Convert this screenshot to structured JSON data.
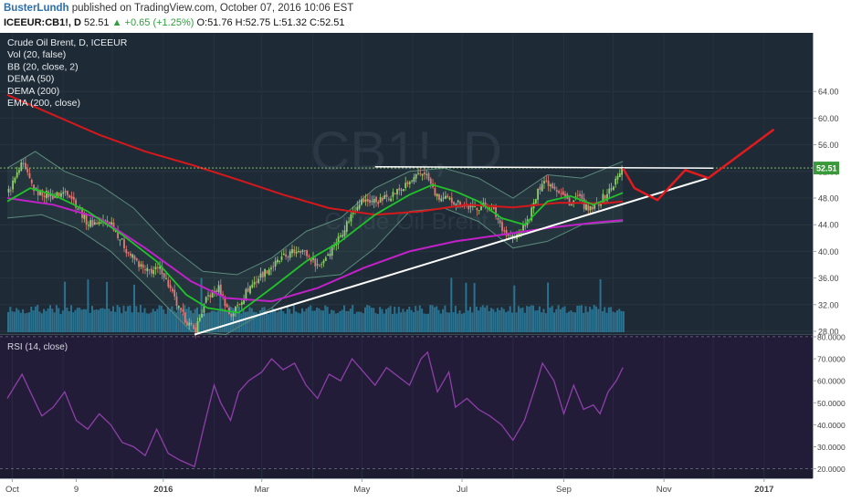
{
  "header": {
    "author": "BusterLundh",
    "published": "published on TradingView.com, October 07, 2016 10:06 EST",
    "symbol": "ICEEUR:CB1!, D",
    "last": "52.51",
    "change": "▲ +0.65 (+1.25%)",
    "ohlc": "O:51.76 H:52.75 L:51.32 C:52.51"
  },
  "colors": {
    "background": "#1e2a36",
    "rsi_background": "#1c1b30",
    "candle_up": "#8fd06e",
    "candle_down": "#e07a78",
    "volume": "#2e7fa0",
    "bb": "#5a8a7a",
    "dema50": "#22c22a",
    "dema200": "#d5181b",
    "ema200": "#c221c9",
    "trendline": "#ffffff",
    "projection": "#e11b1e",
    "rsi_line": "#8e3fa8",
    "price_tag": "#3a9a3a"
  },
  "chart_data": [
    {
      "type": "line",
      "title": "Crude Oil Brent, D, ICEEUR",
      "watermark": "CB1!, D",
      "watermark_sub": "Crude Oil Brent",
      "legend": [
        "Crude Oil Brent, D, ICEEUR",
        "Vol (20, false)",
        "BB (20, close, 2)",
        "DEMA (50)",
        "DEMA (200)",
        "EMA (200, close)"
      ],
      "xlabels": [
        "Oct",
        "9",
        "2016",
        "Mar",
        "May",
        "Jul",
        "Sep",
        "Nov",
        "2017"
      ],
      "ylabels": [
        "64.00",
        "60.00",
        "56.00",
        "52.00",
        "48.00",
        "44.00",
        "40.00",
        "36.00",
        "32.00",
        "28.00"
      ],
      "ylim": [
        25,
        65
      ],
      "last_price": "52.51",
      "price": [
        {
          "x": "2015-09-28",
          "y": 48.6
        },
        {
          "x": "2015-10-07",
          "y": 53.0
        },
        {
          "x": "2015-10-15",
          "y": 49.0
        },
        {
          "x": "2015-10-26",
          "y": 48.3
        },
        {
          "x": "2015-11-04",
          "y": 49.0
        },
        {
          "x": "2015-11-16",
          "y": 44.2
        },
        {
          "x": "2015-11-30",
          "y": 44.5
        },
        {
          "x": "2015-12-10",
          "y": 40.0
        },
        {
          "x": "2015-12-21",
          "y": 37.0
        },
        {
          "x": "2015-12-31",
          "y": 37.3
        },
        {
          "x": "2016-01-11",
          "y": 31.0
        },
        {
          "x": "2016-01-20",
          "y": 27.9
        },
        {
          "x": "2016-01-28",
          "y": 33.2
        },
        {
          "x": "2016-02-04",
          "y": 34.5
        },
        {
          "x": "2016-02-11",
          "y": 30.2
        },
        {
          "x": "2016-02-22",
          "y": 34.5
        },
        {
          "x": "2016-03-03",
          "y": 37.0
        },
        {
          "x": "2016-03-14",
          "y": 39.0
        },
        {
          "x": "2016-03-24",
          "y": 40.5
        },
        {
          "x": "2016-04-05",
          "y": 37.8
        },
        {
          "x": "2016-04-18",
          "y": 42.5
        },
        {
          "x": "2016-04-29",
          "y": 47.5
        },
        {
          "x": "2016-05-12",
          "y": 47.6
        },
        {
          "x": "2016-05-26",
          "y": 49.5
        },
        {
          "x": "2016-06-08",
          "y": 52.0
        },
        {
          "x": "2016-06-16",
          "y": 48.0
        },
        {
          "x": "2016-06-27",
          "y": 47.5
        },
        {
          "x": "2016-07-06",
          "y": 46.5
        },
        {
          "x": "2016-07-18",
          "y": 47.0
        },
        {
          "x": "2016-07-28",
          "y": 42.5
        },
        {
          "x": "2016-08-02",
          "y": 42.0
        },
        {
          "x": "2016-08-10",
          "y": 44.5
        },
        {
          "x": "2016-08-19",
          "y": 50.8
        },
        {
          "x": "2016-08-26",
          "y": 49.8
        },
        {
          "x": "2016-09-06",
          "y": 47.0
        },
        {
          "x": "2016-09-09",
          "y": 48.4
        },
        {
          "x": "2016-09-16",
          "y": 46.0
        },
        {
          "x": "2016-09-23",
          "y": 47.5
        },
        {
          "x": "2016-09-30",
          "y": 49.5
        },
        {
          "x": "2016-10-07",
          "y": 52.5
        }
      ],
      "dema50": [
        {
          "x": "2015-09-28",
          "y": 47.5
        },
        {
          "x": "2015-10-12",
          "y": 49.5
        },
        {
          "x": "2015-10-26",
          "y": 48.5
        },
        {
          "x": "2015-11-16",
          "y": 46.0
        },
        {
          "x": "2015-12-07",
          "y": 42.5
        },
        {
          "x": "2015-12-28",
          "y": 38.5
        },
        {
          "x": "2016-01-15",
          "y": 33.5
        },
        {
          "x": "2016-01-28",
          "y": 31.5
        },
        {
          "x": "2016-02-16",
          "y": 30.8
        },
        {
          "x": "2016-03-07",
          "y": 34.5
        },
        {
          "x": "2016-03-28",
          "y": 38.5
        },
        {
          "x": "2016-04-18",
          "y": 41.5
        },
        {
          "x": "2016-05-09",
          "y": 45.5
        },
        {
          "x": "2016-05-30",
          "y": 48.5
        },
        {
          "x": "2016-06-13",
          "y": 50.0
        },
        {
          "x": "2016-06-27",
          "y": 49.0
        },
        {
          "x": "2016-07-11",
          "y": 47.5
        },
        {
          "x": "2016-07-25",
          "y": 45.0
        },
        {
          "x": "2016-08-08",
          "y": 44.0
        },
        {
          "x": "2016-08-22",
          "y": 47.5
        },
        {
          "x": "2016-09-05",
          "y": 48.3
        },
        {
          "x": "2016-09-19",
          "y": 47.0
        },
        {
          "x": "2016-10-07",
          "y": 48.8
        }
      ],
      "dema200": [
        {
          "x": "2015-09-28",
          "y": 63.5
        },
        {
          "x": "2015-10-26",
          "y": 60.5
        },
        {
          "x": "2015-11-23",
          "y": 57.5
        },
        {
          "x": "2015-12-21",
          "y": 55.0
        },
        {
          "x": "2016-01-18",
          "y": 53.0
        },
        {
          "x": "2016-02-15",
          "y": 50.8
        },
        {
          "x": "2016-03-14",
          "y": 48.5
        },
        {
          "x": "2016-04-11",
          "y": 46.5
        },
        {
          "x": "2016-05-09",
          "y": 45.5
        },
        {
          "x": "2016-06-06",
          "y": 46.0
        },
        {
          "x": "2016-07-04",
          "y": 47.0
        },
        {
          "x": "2016-08-01",
          "y": 46.6
        },
        {
          "x": "2016-08-29",
          "y": 47.3
        },
        {
          "x": "2016-09-26",
          "y": 47.2
        },
        {
          "x": "2016-10-07",
          "y": 47.5
        }
      ],
      "ema200": [
        {
          "x": "2015-09-28",
          "y": 48.0
        },
        {
          "x": "2015-10-26",
          "y": 47.0
        },
        {
          "x": "2015-11-23",
          "y": 45.0
        },
        {
          "x": "2015-12-21",
          "y": 40.5
        },
        {
          "x": "2016-01-18",
          "y": 35.5
        },
        {
          "x": "2016-02-08",
          "y": 33.0
        },
        {
          "x": "2016-03-07",
          "y": 32.5
        },
        {
          "x": "2016-04-04",
          "y": 34.5
        },
        {
          "x": "2016-05-02",
          "y": 37.5
        },
        {
          "x": "2016-05-30",
          "y": 40.0
        },
        {
          "x": "2016-06-27",
          "y": 41.5
        },
        {
          "x": "2016-07-25",
          "y": 42.5
        },
        {
          "x": "2016-08-22",
          "y": 43.5
        },
        {
          "x": "2016-09-19",
          "y": 44.3
        },
        {
          "x": "2016-10-07",
          "y": 44.7
        }
      ],
      "bb_upper": [
        {
          "x": "2015-09-28",
          "y": 52.5
        },
        {
          "x": "2015-10-15",
          "y": 55.0
        },
        {
          "x": "2015-11-02",
          "y": 52.0
        },
        {
          "x": "2015-11-23",
          "y": 50.0
        },
        {
          "x": "2015-12-14",
          "y": 46.5
        },
        {
          "x": "2016-01-04",
          "y": 41.0
        },
        {
          "x": "2016-01-25",
          "y": 37.0
        },
        {
          "x": "2016-02-15",
          "y": 36.5
        },
        {
          "x": "2016-03-07",
          "y": 39.0
        },
        {
          "x": "2016-03-28",
          "y": 43.0
        },
        {
          "x": "2016-04-18",
          "y": 45.0
        },
        {
          "x": "2016-05-09",
          "y": 49.5
        },
        {
          "x": "2016-05-30",
          "y": 52.0
        },
        {
          "x": "2016-06-20",
          "y": 52.5
        },
        {
          "x": "2016-07-11",
          "y": 51.0
        },
        {
          "x": "2016-08-01",
          "y": 48.0
        },
        {
          "x": "2016-08-22",
          "y": 51.5
        },
        {
          "x": "2016-09-12",
          "y": 51.0
        },
        {
          "x": "2016-10-07",
          "y": 53.5
        }
      ],
      "bb_lower": [
        {
          "x": "2015-09-28",
          "y": 45.0
        },
        {
          "x": "2015-10-19",
          "y": 45.5
        },
        {
          "x": "2015-11-09",
          "y": 43.5
        },
        {
          "x": "2015-11-30",
          "y": 40.0
        },
        {
          "x": "2015-12-21",
          "y": 35.0
        },
        {
          "x": "2016-01-18",
          "y": 28.0
        },
        {
          "x": "2016-02-08",
          "y": 27.5
        },
        {
          "x": "2016-03-07",
          "y": 31.5
        },
        {
          "x": "2016-03-28",
          "y": 36.0
        },
        {
          "x": "2016-04-18",
          "y": 36.5
        },
        {
          "x": "2016-05-09",
          "y": 40.5
        },
        {
          "x": "2016-05-30",
          "y": 46.0
        },
        {
          "x": "2016-06-20",
          "y": 46.5
        },
        {
          "x": "2016-07-11",
          "y": 44.5
        },
        {
          "x": "2016-08-01",
          "y": 40.5
        },
        {
          "x": "2016-08-22",
          "y": 41.5
        },
        {
          "x": "2016-09-12",
          "y": 44.0
        },
        {
          "x": "2016-10-07",
          "y": 44.5
        }
      ],
      "trendline": [
        {
          "x": "2016-01-20",
          "y": 27.5
        },
        {
          "x": "2016-11-28",
          "y": 51.0
        }
      ],
      "resistance": [
        {
          "x": "2016-05-09",
          "y": 52.7
        },
        {
          "x": "2016-12-01",
          "y": 52.5
        }
      ],
      "projection": [
        {
          "x": "2016-10-07",
          "y": 52.5
        },
        {
          "x": "2016-10-14",
          "y": 49.5
        },
        {
          "x": "2016-10-28",
          "y": 47.7
        },
        {
          "x": "2016-11-14",
          "y": 52.2
        },
        {
          "x": "2016-11-28",
          "y": 51.0
        },
        {
          "x": "2017-01-07",
          "y": 58.3
        }
      ]
    },
    {
      "type": "line",
      "title": "RSI (14, close)",
      "ylabels": [
        "80.0000",
        "70.0000",
        "60.0000",
        "50.0000",
        "40.0000",
        "30.0000",
        "20.0000"
      ],
      "ylim": [
        18,
        82
      ],
      "bands": [
        80,
        20
      ],
      "values": [
        {
          "x": "2015-09-28",
          "y": 52
        },
        {
          "x": "2015-10-07",
          "y": 63
        },
        {
          "x": "2015-10-12",
          "y": 55
        },
        {
          "x": "2015-10-19",
          "y": 44
        },
        {
          "x": "2015-10-26",
          "y": 48
        },
        {
          "x": "2015-11-02",
          "y": 55
        },
        {
          "x": "2015-11-09",
          "y": 42
        },
        {
          "x": "2015-11-16",
          "y": 38
        },
        {
          "x": "2015-11-23",
          "y": 45
        },
        {
          "x": "2015-11-30",
          "y": 40
        },
        {
          "x": "2015-12-07",
          "y": 32
        },
        {
          "x": "2015-12-14",
          "y": 30
        },
        {
          "x": "2015-12-21",
          "y": 26
        },
        {
          "x": "2015-12-28",
          "y": 38
        },
        {
          "x": "2016-01-04",
          "y": 27
        },
        {
          "x": "2016-01-11",
          "y": 24
        },
        {
          "x": "2016-01-20",
          "y": 21
        },
        {
          "x": "2016-01-26",
          "y": 40
        },
        {
          "x": "2016-02-01",
          "y": 58
        },
        {
          "x": "2016-02-05",
          "y": 50
        },
        {
          "x": "2016-02-11",
          "y": 42
        },
        {
          "x": "2016-02-16",
          "y": 55
        },
        {
          "x": "2016-02-22",
          "y": 60
        },
        {
          "x": "2016-03-01",
          "y": 64
        },
        {
          "x": "2016-03-07",
          "y": 70
        },
        {
          "x": "2016-03-14",
          "y": 65
        },
        {
          "x": "2016-03-21",
          "y": 68
        },
        {
          "x": "2016-03-28",
          "y": 58
        },
        {
          "x": "2016-04-04",
          "y": 52
        },
        {
          "x": "2016-04-11",
          "y": 63
        },
        {
          "x": "2016-04-18",
          "y": 60
        },
        {
          "x": "2016-04-25",
          "y": 70
        },
        {
          "x": "2016-05-02",
          "y": 64
        },
        {
          "x": "2016-05-09",
          "y": 58
        },
        {
          "x": "2016-05-16",
          "y": 66
        },
        {
          "x": "2016-05-23",
          "y": 62
        },
        {
          "x": "2016-05-30",
          "y": 58
        },
        {
          "x": "2016-06-06",
          "y": 70
        },
        {
          "x": "2016-06-10",
          "y": 73
        },
        {
          "x": "2016-06-16",
          "y": 55
        },
        {
          "x": "2016-06-23",
          "y": 64
        },
        {
          "x": "2016-06-27",
          "y": 48
        },
        {
          "x": "2016-07-04",
          "y": 52
        },
        {
          "x": "2016-07-11",
          "y": 47
        },
        {
          "x": "2016-07-18",
          "y": 44
        },
        {
          "x": "2016-07-25",
          "y": 40
        },
        {
          "x": "2016-08-01",
          "y": 33
        },
        {
          "x": "2016-08-08",
          "y": 42
        },
        {
          "x": "2016-08-15",
          "y": 58
        },
        {
          "x": "2016-08-19",
          "y": 68
        },
        {
          "x": "2016-08-26",
          "y": 60
        },
        {
          "x": "2016-09-01",
          "y": 45
        },
        {
          "x": "2016-09-07",
          "y": 58
        },
        {
          "x": "2016-09-13",
          "y": 47
        },
        {
          "x": "2016-09-19",
          "y": 49
        },
        {
          "x": "2016-09-23",
          "y": 45
        },
        {
          "x": "2016-09-28",
          "y": 55
        },
        {
          "x": "2016-10-03",
          "y": 60
        },
        {
          "x": "2016-10-07",
          "y": 66
        }
      ]
    }
  ]
}
